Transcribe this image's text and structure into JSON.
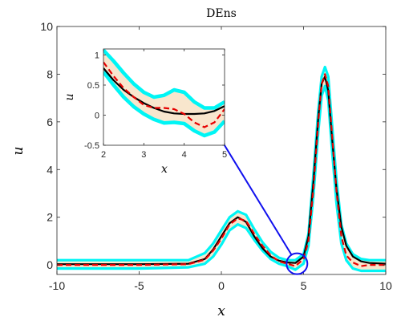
{
  "chart_data": [
    {
      "type": "line",
      "title": "DEns",
      "xlabel": "x",
      "ylabel": "u",
      "xlim": [
        -10,
        10
      ],
      "ylim": [
        -0.4,
        10
      ],
      "xticks": [
        -10,
        -5,
        0,
        5,
        10
      ],
      "yticks": [
        0,
        2,
        4,
        6,
        8,
        10
      ],
      "xtick_labels": [
        "-10",
        "-5",
        "0",
        "5",
        "10"
      ],
      "ytick_labels": [
        "0",
        "2",
        "4",
        "6",
        "8",
        "10"
      ],
      "grid": false,
      "colors": {
        "band_fill": "#f8e6cd",
        "band_edge": "#00f5f5",
        "exact": "#000000",
        "mean": "#e60000",
        "arrow": "#1010ee"
      },
      "series": [
        {
          "style": "solid-black",
          "x": [
            -10,
            -5,
            -2,
            -1,
            -0.5,
            0,
            0.5,
            1,
            1.5,
            2,
            2.5,
            3,
            3.5,
            4,
            4.5,
            5,
            5.3,
            5.6,
            5.9,
            6.1,
            6.3,
            6.5,
            6.7,
            7,
            7.3,
            7.6,
            8,
            8.5,
            9,
            10
          ],
          "y": [
            0.03,
            0.03,
            0.05,
            0.25,
            0.65,
            1.2,
            1.75,
            2.0,
            1.8,
            1.2,
            0.7,
            0.35,
            0.18,
            0.1,
            0.08,
            0.35,
            1.2,
            3.5,
            6.2,
            7.6,
            7.9,
            7.3,
            5.6,
            3.2,
            1.6,
            0.8,
            0.35,
            0.15,
            0.08,
            0.05
          ]
        },
        {
          "style": "dashed-red",
          "x": [
            -10,
            -5,
            -2,
            -1,
            -0.5,
            0,
            0.5,
            1,
            1.5,
            2,
            2.5,
            3,
            3.5,
            4,
            4.5,
            5,
            5.3,
            5.6,
            5.9,
            6.1,
            6.3,
            6.5,
            6.7,
            7,
            7.3,
            7.6,
            8,
            8.5,
            9,
            10
          ],
          "y": [
            0.0,
            0.0,
            0.03,
            0.22,
            0.6,
            1.1,
            1.7,
            1.95,
            1.85,
            1.3,
            0.8,
            0.4,
            0.15,
            0.05,
            -0.05,
            0.25,
            1.0,
            3.2,
            6.0,
            7.6,
            8.0,
            7.5,
            5.8,
            3.1,
            1.2,
            0.4,
            0.1,
            -0.05,
            0.0,
            0.0
          ]
        },
        {
          "style": "band-upper",
          "x": [
            -10,
            -5,
            -2,
            -1,
            -0.5,
            0,
            0.5,
            1,
            1.5,
            2,
            2.5,
            3,
            3.5,
            4,
            4.5,
            5,
            5.3,
            5.6,
            5.9,
            6.1,
            6.3,
            6.5,
            6.7,
            7,
            7.3,
            7.6,
            8,
            8.5,
            9,
            10
          ],
          "y": [
            0.2,
            0.2,
            0.2,
            0.5,
            0.9,
            1.45,
            2.0,
            2.25,
            2.1,
            1.5,
            0.95,
            0.55,
            0.3,
            0.2,
            0.2,
            0.45,
            1.3,
            3.8,
            6.5,
            7.9,
            8.3,
            7.9,
            6.2,
            3.6,
            1.7,
            0.9,
            0.45,
            0.25,
            0.2,
            0.2
          ]
        },
        {
          "style": "band-lower",
          "x": [
            -10,
            -5,
            -2,
            -1,
            -0.5,
            0,
            0.5,
            1,
            1.5,
            2,
            2.5,
            3,
            3.5,
            4,
            4.5,
            5,
            5.3,
            5.6,
            5.9,
            6.1,
            6.3,
            6.5,
            6.7,
            7,
            7.3,
            7.6,
            8,
            8.5,
            9,
            10
          ],
          "y": [
            -0.15,
            -0.15,
            -0.1,
            0.05,
            0.35,
            0.85,
            1.45,
            1.7,
            1.55,
            1.05,
            0.6,
            0.25,
            0.05,
            -0.05,
            -0.2,
            0.05,
            0.8,
            2.9,
            5.6,
            7.1,
            7.5,
            6.9,
            5.1,
            2.6,
            0.9,
            0.2,
            -0.15,
            -0.25,
            -0.25,
            -0.25
          ]
        }
      ],
      "zoom_marker": {
        "center": [
          4.6,
          0.05
        ],
        "points_to": [
          -0.5,
          5.8
        ]
      }
    },
    {
      "type": "line",
      "title": "",
      "xlabel": "x",
      "ylabel": "u",
      "xlim": [
        2,
        5
      ],
      "ylim": [
        -0.5,
        1.1
      ],
      "xticks": [
        2,
        3,
        4,
        5
      ],
      "yticks": [
        -0.5,
        0,
        0.5,
        1
      ],
      "xtick_labels": [
        "2",
        "3",
        "4",
        "5"
      ],
      "ytick_labels": [
        "-0.5",
        "0",
        "0.5",
        "1"
      ],
      "grid": false,
      "series": [
        {
          "style": "solid-black",
          "x": [
            2,
            2.25,
            2.5,
            2.75,
            3,
            3.25,
            3.5,
            3.75,
            4,
            4.25,
            4.5,
            4.75,
            5
          ],
          "y": [
            0.78,
            0.58,
            0.42,
            0.3,
            0.2,
            0.12,
            0.06,
            0.03,
            0.02,
            0.02,
            0.03,
            0.07,
            0.15
          ]
        },
        {
          "style": "dashed-red",
          "x": [
            2,
            2.25,
            2.5,
            2.75,
            3,
            3.25,
            3.5,
            3.75,
            4,
            4.25,
            4.5,
            4.75,
            5
          ],
          "y": [
            0.88,
            0.65,
            0.45,
            0.3,
            0.17,
            0.12,
            0.12,
            0.1,
            0.02,
            -0.12,
            -0.2,
            -0.12,
            0.1
          ]
        },
        {
          "style": "band-upper",
          "x": [
            2,
            2.25,
            2.5,
            2.75,
            3,
            3.25,
            3.5,
            3.75,
            4,
            4.25,
            4.5,
            4.75,
            5
          ],
          "y": [
            1.08,
            0.9,
            0.7,
            0.52,
            0.38,
            0.3,
            0.33,
            0.42,
            0.38,
            0.22,
            0.12,
            0.12,
            0.22
          ]
        },
        {
          "style": "band-lower",
          "x": [
            2,
            2.25,
            2.5,
            2.75,
            3,
            3.25,
            3.5,
            3.75,
            4,
            4.25,
            4.5,
            4.75,
            5
          ],
          "y": [
            0.72,
            0.5,
            0.3,
            0.14,
            0.02,
            -0.07,
            -0.13,
            -0.12,
            -0.14,
            -0.26,
            -0.34,
            -0.28,
            -0.1
          ]
        }
      ]
    }
  ]
}
